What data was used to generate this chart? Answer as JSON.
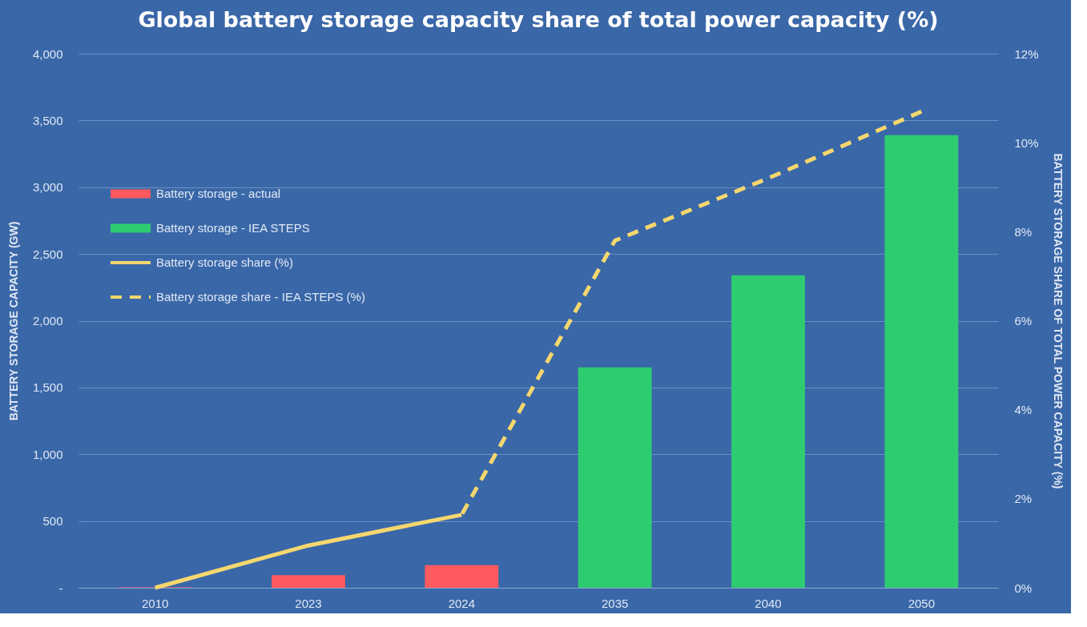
{
  "chart_data": {
    "type": "bar",
    "title": "Global battery storage capacity share of total power capacity (%)",
    "categories": [
      "2010",
      "2023",
      "2024",
      "2035",
      "2040",
      "2050"
    ],
    "series": [
      {
        "name": "Battery storage - actual",
        "color": "#ff5a5f",
        "values": [
          3,
          95,
          170,
          null,
          null,
          null
        ]
      },
      {
        "name": "Battery storage - IEA STEPS",
        "color": "#2ecc71",
        "values": [
          null,
          null,
          null,
          1650,
          2340,
          3390
        ]
      },
      {
        "name": "Battery storage share (%)",
        "type": "line",
        "axis": "y2",
        "line_style": "solid",
        "color": "#f5d76e",
        "values": [
          0,
          0.95,
          1.64,
          null,
          null,
          null
        ]
      },
      {
        "name": "Battery storage share - IEA STEPS (%)",
        "type": "line",
        "axis": "y2",
        "line_style": "dashed",
        "color": "#f5d76e",
        "values": [
          null,
          null,
          1.64,
          7.8,
          9.2,
          10.7
        ]
      }
    ],
    "ylabel": "BATTERY STORAGE CAPACITY (GW)",
    "y2label": "BATTERY STORAGE SHARE OF TOTAL POWER CAPACITY (%)",
    "ylim": [
      0,
      4000
    ],
    "yticks": [
      {
        "value": 0,
        "label": "-"
      },
      {
        "value": 500,
        "label": "500"
      },
      {
        "value": 1000,
        "label": "1,000"
      },
      {
        "value": 1500,
        "label": "1,500"
      },
      {
        "value": 2000,
        "label": "2,000"
      },
      {
        "value": 2500,
        "label": "2,500"
      },
      {
        "value": 3000,
        "label": "3,000"
      },
      {
        "value": 3500,
        "label": "3,500"
      },
      {
        "value": 4000,
        "label": "4,000"
      }
    ],
    "y2lim": [
      0,
      12
    ],
    "y2ticks": [
      {
        "value": 0,
        "label": "0%"
      },
      {
        "value": 2,
        "label": "2%"
      },
      {
        "value": 4,
        "label": "4%"
      },
      {
        "value": 6,
        "label": "6%"
      },
      {
        "value": 8,
        "label": "8%"
      },
      {
        "value": 10,
        "label": "10%"
      },
      {
        "value": 12,
        "label": "12%"
      }
    ],
    "grid": "y",
    "legend": "top left"
  }
}
